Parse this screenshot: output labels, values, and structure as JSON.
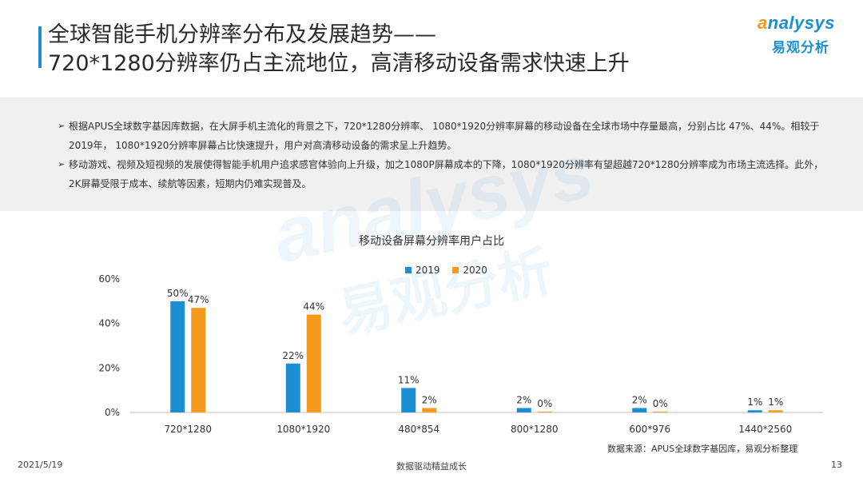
{
  "header": {
    "title_line1": "全球智能手机分辨率分布及发展趋势——",
    "title_line2": "720*1280分辨率仍占主流地位，高清移动设备需求快速上升"
  },
  "logo": {
    "en_prefix": "a",
    "en_rest": "nalysys",
    "cn": "易观分析"
  },
  "summary": {
    "bullets": [
      "根据APUS全球数字基因库数据，在大屏手机主流化的背景之下，720*1280分辨率、 1080*1920分辨率屏幕的移动设备在全球市场中存量最高，分别占比 47%、44%。相较于2019年， 1080*1920分辨率屏幕占比快速提升，用户对高清移动设备的需求呈上升趋势。",
      "移动游戏、视频及短视频的发展使得智能手机用户追求感官体验向上升级，加之1080P屏幕成本的下降，1080*1920分辨率有望超越720*1280分辨率成为市场主流选择。此外， 2K屏幕受限于成本、续航等因素，短期内仍难实现普及。"
    ],
    "bullet_marker": "➢"
  },
  "chart_data": {
    "type": "bar",
    "title": "移动设备屏幕分辨率用户占比",
    "categories": [
      "720*1280",
      "1080*1920",
      "480*854",
      "800*1280",
      "600*976",
      "1440*2560"
    ],
    "series": [
      {
        "name": "2019",
        "color": "#1b8fd2",
        "values": [
          50,
          22,
          11,
          2,
          2,
          1
        ],
        "labels": [
          "50%",
          "22%",
          "11%",
          "2%",
          "2%",
          "1%"
        ]
      },
      {
        "name": "2020",
        "color": "#f59a1d",
        "values": [
          47,
          44,
          2,
          0.4,
          0.4,
          1
        ],
        "labels": [
          "47%",
          "44%",
          "2%",
          "0%",
          "0%",
          "1%"
        ]
      }
    ],
    "ylim": [
      0,
      60
    ],
    "yticks": [
      0,
      20,
      40,
      60
    ],
    "ytick_labels": [
      "0%",
      "20%",
      "40%",
      "60%"
    ],
    "legend_position": "top-center"
  },
  "source": "数据来源：APUS全球数字基因库，易观分析整理",
  "footer": {
    "date": "2021/5/19",
    "tagline": "数据驱动精益成长",
    "page": "13"
  }
}
